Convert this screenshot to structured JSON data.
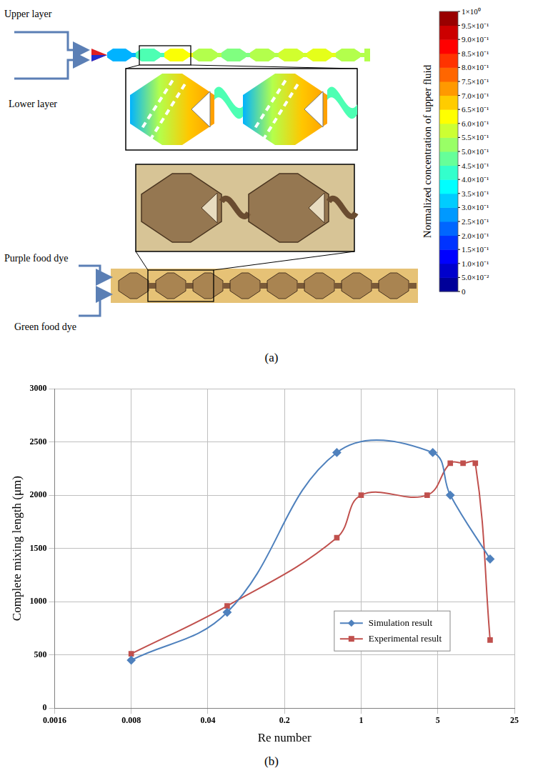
{
  "panel_a": {
    "label": "(a)",
    "texts": {
      "upper_layer": "Upper layer",
      "lower_layer": "Lower layer",
      "purple": "Purple food dye",
      "green": "Green food dye"
    },
    "colorbar": {
      "label": "Normalized concentration of upper fluid",
      "range": [
        0,
        1
      ],
      "ticks": [
        {
          "value": 1,
          "label": "1×10⁰"
        },
        {
          "value": 0.95,
          "label": "9.5×10⁻¹"
        },
        {
          "value": 0.9,
          "label": "9.0×10⁻¹"
        },
        {
          "value": 0.85,
          "label": "8.5×10⁻¹"
        },
        {
          "value": 0.8,
          "label": "8.0×10⁻¹"
        },
        {
          "value": 0.75,
          "label": "7.5×10⁻¹"
        },
        {
          "value": 0.7,
          "label": "7.0×10⁻¹"
        },
        {
          "value": 0.65,
          "label": "6.5×10⁻¹"
        },
        {
          "value": 0.6,
          "label": "6.0×10⁻¹"
        },
        {
          "value": 0.55,
          "label": "5.5×10⁻¹"
        },
        {
          "value": 0.5,
          "label": "5.0×10⁻¹"
        },
        {
          "value": 0.45,
          "label": "4.5×10⁻¹"
        },
        {
          "value": 0.4,
          "label": "4.0×10⁻¹"
        },
        {
          "value": 0.35,
          "label": "3.5×10⁻¹"
        },
        {
          "value": 0.3,
          "label": "3.0×10⁻¹"
        },
        {
          "value": 0.25,
          "label": "2.5×10⁻¹"
        },
        {
          "value": 0.2,
          "label": "2.0×10⁻¹"
        },
        {
          "value": 0.15,
          "label": "1.5×10⁻¹"
        },
        {
          "value": 0.1,
          "label": "1.0×10⁻¹"
        },
        {
          "value": 0.05,
          "label": "5.0×10⁻²"
        },
        0
      ]
    }
  },
  "chart_data": {
    "type": "line",
    "x_label": "Re number",
    "y_label": "Complete mixing length (μm)",
    "log": "x",
    "grid": true,
    "legend": "lower right",
    "xlim": [
      0.0016,
      25
    ],
    "xticks": [
      0.0016,
      0.008,
      0.04,
      0.2,
      1,
      5,
      25
    ],
    "ylim": [
      0,
      3000
    ],
    "yticks": [
      0,
      500,
      1000,
      1500,
      2000,
      2500,
      3000
    ],
    "series": [
      {
        "name": "Simulation result",
        "color": "#4f81bd",
        "marker": "diamond",
        "line_style": "smooth",
        "x": [
          0.008,
          0.06,
          0.6,
          4.5,
          6.5,
          15
        ],
        "values": [
          450,
          900,
          2400,
          2400,
          2000,
          1400
        ]
      },
      {
        "name": "Experimental result",
        "color": "#c0504d",
        "marker": "square",
        "line_style": "smooth",
        "x": [
          0.008,
          0.06,
          0.6,
          1,
          4,
          6.5,
          8.5,
          11,
          15
        ],
        "values": [
          510,
          960,
          1600,
          2000,
          2000,
          2300,
          2300,
          2300,
          640
        ]
      }
    ]
  },
  "panel_b_label": "(b)"
}
